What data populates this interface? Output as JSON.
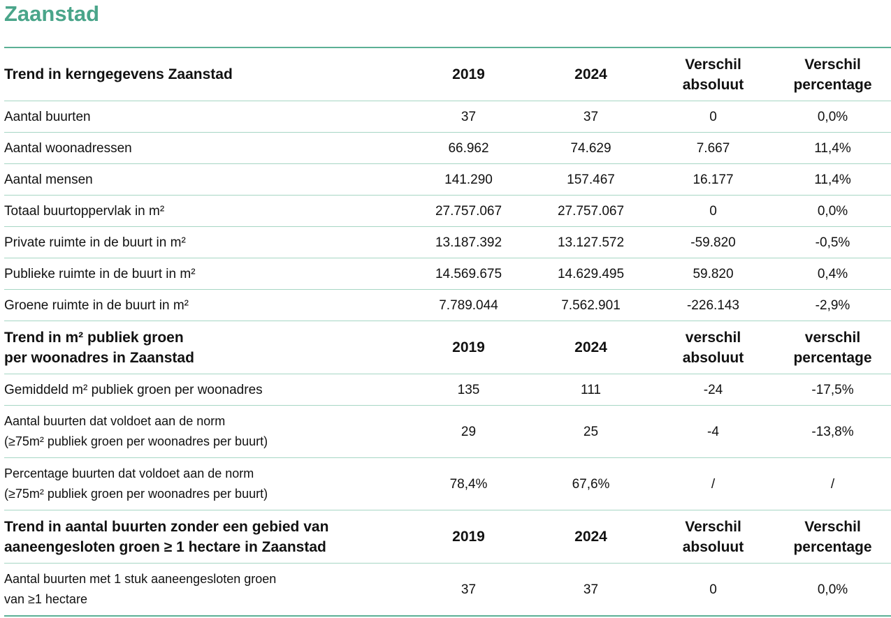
{
  "title": "Zaanstad",
  "sections": [
    {
      "header": [
        "Trend in kerngegevens Zaanstad",
        "2019",
        "2024",
        "Verschil\nabsoluut",
        "Verschil\npercentage"
      ],
      "rows": [
        [
          "Aantal buurten",
          "37",
          "37",
          "0",
          "0,0%"
        ],
        [
          "Aantal woonadressen",
          "66.962",
          "74.629",
          "7.667",
          "11,4%"
        ],
        [
          "Aantal mensen",
          "141.290",
          "157.467",
          "16.177",
          "11,4%"
        ],
        [
          "Totaal buurtoppervlak in m²",
          "27.757.067",
          "27.757.067",
          "0",
          "0,0%"
        ],
        [
          "Private ruimte in de buurt in m²",
          "13.187.392",
          "13.127.572",
          "-59.820",
          "-0,5%"
        ],
        [
          "Publieke ruimte in de buurt in m²",
          "14.569.675",
          "14.629.495",
          "59.820",
          "0,4%"
        ],
        [
          "Groene ruimte in de buurt in m²",
          "7.789.044",
          "7.562.901",
          "-226.143",
          "-2,9%"
        ]
      ]
    },
    {
      "header": [
        "Trend in m² publiek groen\nper woonadres in Zaanstad",
        "2019",
        "2024",
        "verschil\nabsoluut",
        "verschil\npercentage"
      ],
      "rows": [
        [
          "Gemiddeld m² publiek groen per woonadres",
          "135",
          "111",
          "-24",
          "-17,5%"
        ],
        [
          "Aantal buurten dat voldoet aan de norm\n(≥75m² publiek groen per woonadres per buurt)",
          "29",
          "25",
          "-4",
          "-13,8%"
        ],
        [
          "Percentage buurten dat voldoet aan de norm\n(≥75m² publiek groen per woonadres per buurt)",
          "78,4%",
          "67,6%",
          "/",
          "/"
        ]
      ]
    },
    {
      "header": [
        "Trend in aantal buurten zonder een gebied van\naaneengesloten groen ≥ 1 hectare in Zaanstad",
        "2019",
        "2024",
        "Verschil\nabsoluut",
        "Verschil\npercentage"
      ],
      "rows": [
        [
          "Aantal buurten met 1 stuk aaneengesloten groen\nvan ≥1 hectare",
          "37",
          "37",
          "0",
          "0,0%"
        ]
      ]
    }
  ]
}
